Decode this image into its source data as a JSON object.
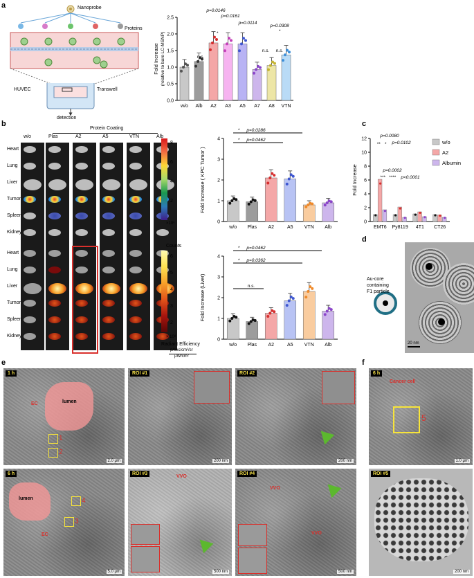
{
  "panels": {
    "a": "a",
    "b": "b",
    "c": "c",
    "d": "d",
    "e": "e",
    "f": "f"
  },
  "schematic_a": {
    "nanoprobe": "Nanoprobe",
    "proteins": "Proteins",
    "huvec": "HUVEC",
    "transwell": "Transwell",
    "detection": "detection"
  },
  "chart_a": {
    "type": "bar",
    "ylabel": "Fold Increase",
    "ylabel2": "(relative to bare LC-MSNP)",
    "categories": [
      "w/o",
      "Alb",
      "A2",
      "A3",
      "A5",
      "A7",
      "A8",
      "VTN"
    ],
    "values": [
      1.0,
      1.17,
      1.73,
      1.7,
      1.7,
      0.93,
      1.05,
      1.37
    ],
    "ylim": [
      0,
      2.5
    ],
    "yticks": [
      "0.0",
      "0.5",
      "1.0",
      "1.5",
      "2.0",
      "2.5"
    ],
    "colors": [
      "#c8c8c8",
      "#9c9c9c",
      "#f4a7a7",
      "#f6b3f0",
      "#b8b3f4",
      "#cdb6ec",
      "#ede6a6",
      "#b9dbf6"
    ],
    "dots": [
      "#555555",
      "#333333",
      "#d62e2e",
      "#c43fb8",
      "#3f57d0",
      "#8b45c9",
      "#c4b32f",
      "#3d8fd9"
    ],
    "annotations": [
      "n.s.",
      "*",
      "p=0.0146",
      "p=0.0161",
      "p=0.0114",
      "n.s.",
      "n.s.",
      "p=0.0308",
      "*"
    ]
  },
  "imaging_b": {
    "protein_coating": "Protein Coating",
    "columns": [
      "w/o",
      "Plas",
      "A2",
      "A5",
      "VTN",
      "Alb"
    ],
    "organs": [
      "Heart",
      "Lung",
      "Liver",
      "Tumor",
      "Spleen",
      "Kidney"
    ],
    "cbar_top_ticks": [
      "8",
      "6",
      "4",
      "2"
    ],
    "cbar_top_unit": "×10⁶",
    "counts": "Counts",
    "cbar_bot_ticks": [
      "6",
      "5",
      "4",
      "3",
      "2"
    ],
    "cbar_bot_unit": "× 10⁸",
    "radiant": "Radiant Efficiency",
    "radiant_unit1": "p/sec/cm²/sr",
    "radiant_unit2": "μW/cm²"
  },
  "chart_b1": {
    "type": "bar",
    "ylabel": "Fold Increase ( KPC Tumor )",
    "categories": [
      "w/o",
      "Plas",
      "A2",
      "A5",
      "VTN",
      "Alb"
    ],
    "values": [
      1.0,
      0.95,
      2.1,
      2.05,
      0.8,
      0.9
    ],
    "ylim": [
      0,
      4
    ],
    "yticks": [
      "0",
      "1",
      "2",
      "3",
      "4"
    ],
    "colors": [
      "#c8c8c8",
      "#9c9c9c",
      "#f4a7a7",
      "#b8c3f4",
      "#f9cc9f",
      "#cdb6ec"
    ],
    "dots": [
      "#111111",
      "#111111",
      "#d62e2e",
      "#3f57d0",
      "#f08a2a",
      "#8b45c9"
    ],
    "annotations": [
      "*",
      "p=0.0286",
      "*",
      "p=0.0462"
    ]
  },
  "chart_b2": {
    "type": "bar",
    "ylabel": "Fold Increase (Liver)",
    "categories": [
      "w/o",
      "Plas",
      "A2",
      "A5",
      "VTN",
      "Alb"
    ],
    "values": [
      1.0,
      0.85,
      1.25,
      1.85,
      2.3,
      1.35
    ],
    "ylim": [
      0,
      4
    ],
    "yticks": [
      "0",
      "1",
      "2",
      "3",
      "4"
    ],
    "colors": [
      "#c8c8c8",
      "#9c9c9c",
      "#f4a7a7",
      "#b8c3f4",
      "#f9cc9f",
      "#cdb6ec"
    ],
    "dots": [
      "#111111",
      "#111111",
      "#d62e2e",
      "#3f57d0",
      "#f08a2a",
      "#8b45c9"
    ],
    "annotations": [
      "*",
      "p=0.0462",
      "*",
      "p=0.0362",
      "n.s."
    ]
  },
  "chart_c": {
    "type": "bar",
    "ylabel": "Fold Increase",
    "categories": [
      "EMT6",
      "Py8119",
      "4T1",
      "CT26"
    ],
    "series": [
      {
        "name": "w/o",
        "values": [
          1.0,
          1.0,
          1.1,
          1.0
        ],
        "color": "#c8c8c8"
      },
      {
        "name": "A2",
        "values": [
          6.1,
          2.1,
          1.4,
          0.95
        ],
        "color": "#f4a7a7"
      },
      {
        "name": "Albumin",
        "values": [
          1.7,
          0.6,
          0.7,
          0.6
        ],
        "color": "#cdb6ec"
      }
    ],
    "ylim": [
      0,
      12
    ],
    "yticks": [
      "0",
      "2",
      "4",
      "6",
      "8",
      "10",
      "12"
    ],
    "annotations": [
      "p=0.0080",
      "**",
      "*",
      "p=0.0102",
      "p=0.0002",
      "***",
      "****",
      "p<0.0001"
    ]
  },
  "panel_d": {
    "caption1": "Au-core",
    "caption2": "containing",
    "caption3": "F1 particle",
    "scale": "20 nm"
  },
  "panel_e": {
    "tile1_tag": "1 h",
    "tile1_scale": "2.0 μm",
    "lumen": "lumen",
    "ec": "EC",
    "roi1": "1",
    "roi2": "2",
    "tile2_tag": "ROI #1",
    "tile2_scale": "200 nm",
    "tile3_tag": "ROI #2",
    "tile3_scale": "200 nm",
    "tile4_tag": "6 h",
    "tile4_scale": "5.0 μm",
    "roi3": "3",
    "roi4": "4",
    "tile5_tag": "ROI #3",
    "tile5_scale": "500 nm",
    "vvo": "VVO",
    "tile6_tag": "ROI #4",
    "tile6_scale": "500 nm"
  },
  "panel_f": {
    "tile1_tag": "6 h",
    "cancer": "Cancer cell",
    "roi5": "5",
    "tile1_scale": "1.0 μm",
    "tile2_tag": "ROI #5",
    "tile2_scale": "200 nm"
  }
}
